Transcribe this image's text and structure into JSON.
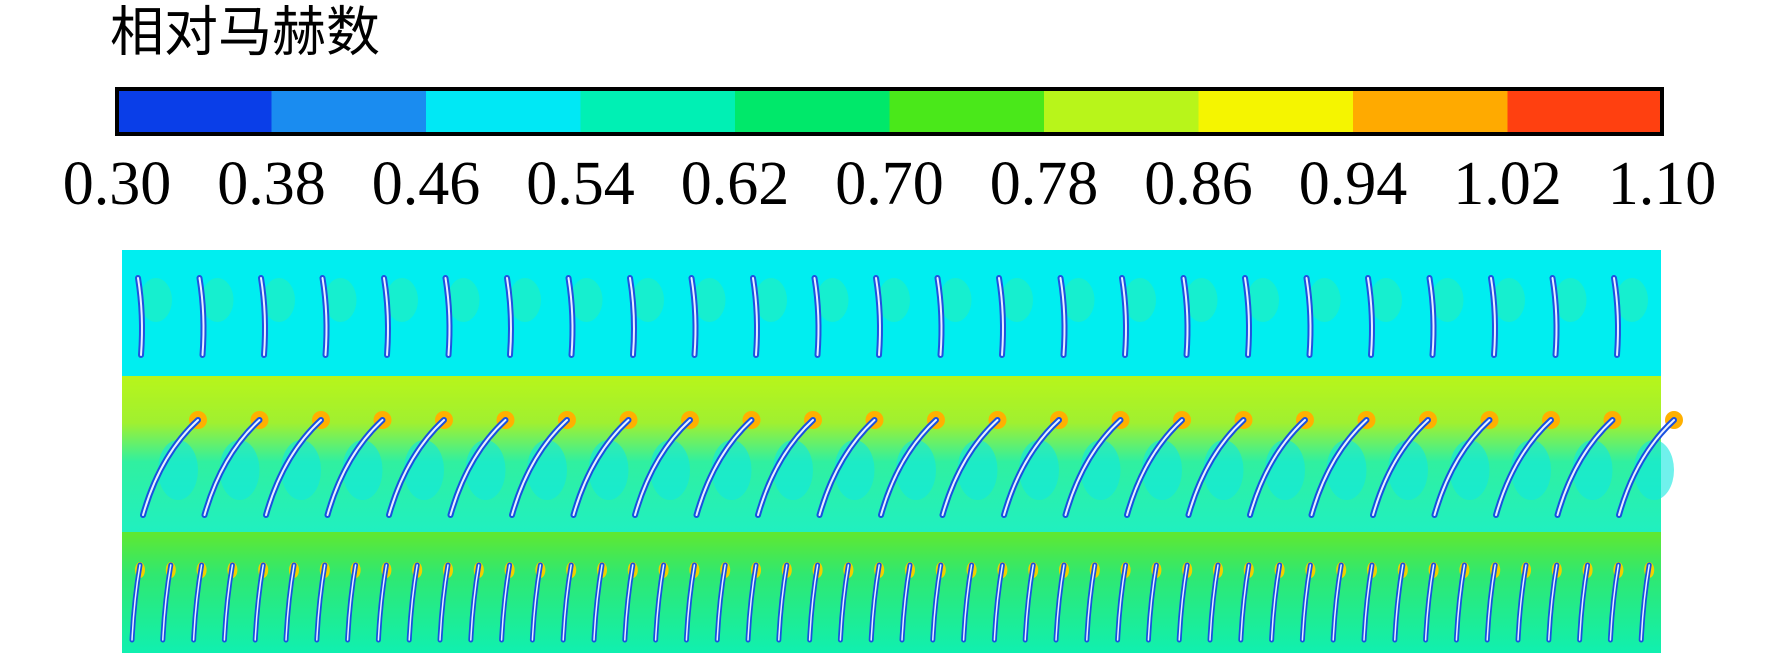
{
  "chart_data": {
    "type": "colorbar",
    "title": "相对马赫数",
    "colors": [
      "#0a3ee8",
      "#1a8cf0",
      "#00e8f5",
      "#00f0b4",
      "#00e86a",
      "#4ae81a",
      "#b8f51a",
      "#f5f500",
      "#ffaa00",
      "#ff4010"
    ],
    "xlim": [
      0.3,
      1.1
    ],
    "xticks": [
      {
        "value": 0.3,
        "label": "0.30"
      },
      {
        "value": 0.38,
        "label": "0.38"
      },
      {
        "value": 0.46,
        "label": "0.46"
      },
      {
        "value": 0.54,
        "label": "0.54"
      },
      {
        "value": 0.62,
        "label": "0.62"
      },
      {
        "value": 0.7,
        "label": "0.70"
      },
      {
        "value": 0.78,
        "label": "0.78"
      },
      {
        "value": 0.86,
        "label": "0.86"
      },
      {
        "value": 0.94,
        "label": "0.94"
      },
      {
        "value": 1.02,
        "label": "1.02"
      },
      {
        "value": 1.1,
        "label": "1.10"
      }
    ]
  }
}
